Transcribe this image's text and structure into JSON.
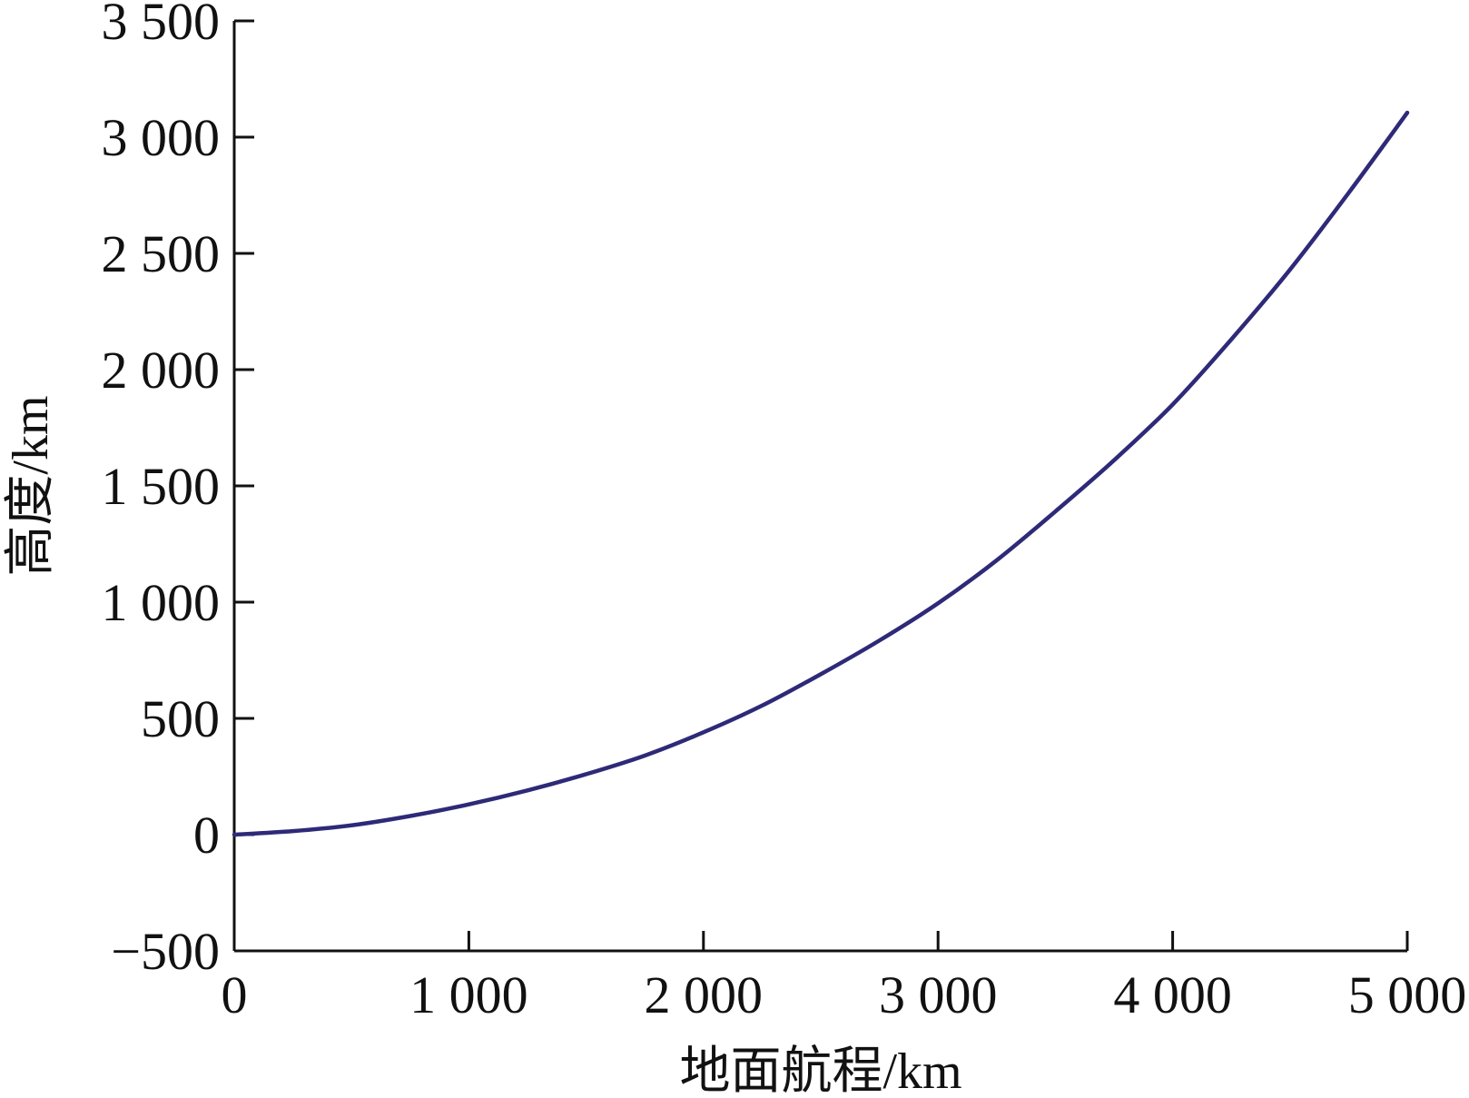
{
  "chart_data": {
    "type": "line",
    "title": "",
    "xlabel": "地面航程/km",
    "ylabel": "高度/km",
    "xlim": [
      0,
      5000
    ],
    "ylim": [
      -500,
      3500
    ],
    "x_ticks": [
      0,
      1000,
      2000,
      3000,
      4000,
      5000
    ],
    "x_tick_labels": [
      "0",
      "1 000",
      "2 000",
      "3 000",
      "4 000",
      "5 000"
    ],
    "y_ticks": [
      -500,
      0,
      500,
      1000,
      1500,
      2000,
      2500,
      3000,
      3500
    ],
    "y_tick_labels": [
      "−500",
      "0",
      "500",
      "1 000",
      "1 500",
      "2 000",
      "2 500",
      "3 000",
      "3 500"
    ],
    "grid": false,
    "series": [
      {
        "color": "#2e2a78",
        "x": [
          0,
          250,
          500,
          750,
          1000,
          1250,
          1500,
          1750,
          2000,
          2250,
          2500,
          2750,
          3000,
          3250,
          3500,
          3750,
          4000,
          4250,
          4500,
          4750,
          5000
        ],
        "y": [
          0,
          15,
          40,
          80,
          130,
          190,
          260,
          340,
          440,
          555,
          690,
          835,
          995,
          1180,
          1390,
          1610,
          1850,
          2130,
          2430,
          2760,
          3105
        ]
      }
    ]
  }
}
